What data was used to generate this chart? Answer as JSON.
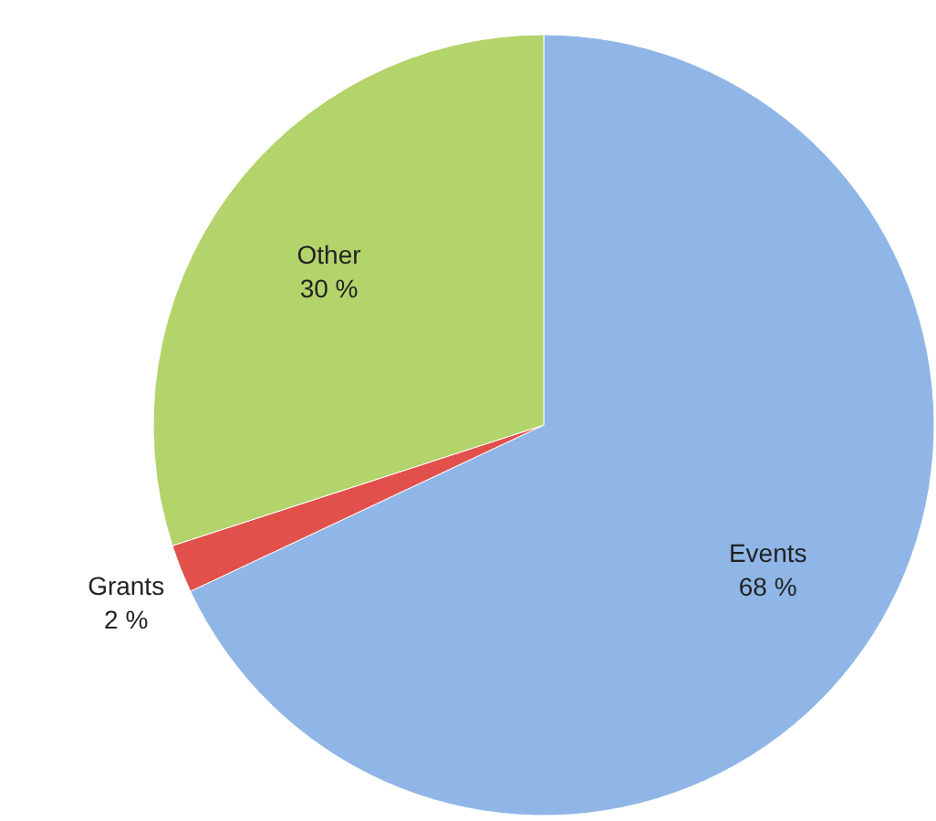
{
  "chart_data": {
    "type": "pie",
    "categories": [
      "Events",
      "Grants",
      "Other"
    ],
    "values": [
      68,
      2,
      30
    ],
    "colors": [
      "#8fb6e6",
      "#e2504c",
      "#b3d36b"
    ],
    "value_labels": [
      "68 %",
      "2 %",
      "30 %"
    ]
  }
}
